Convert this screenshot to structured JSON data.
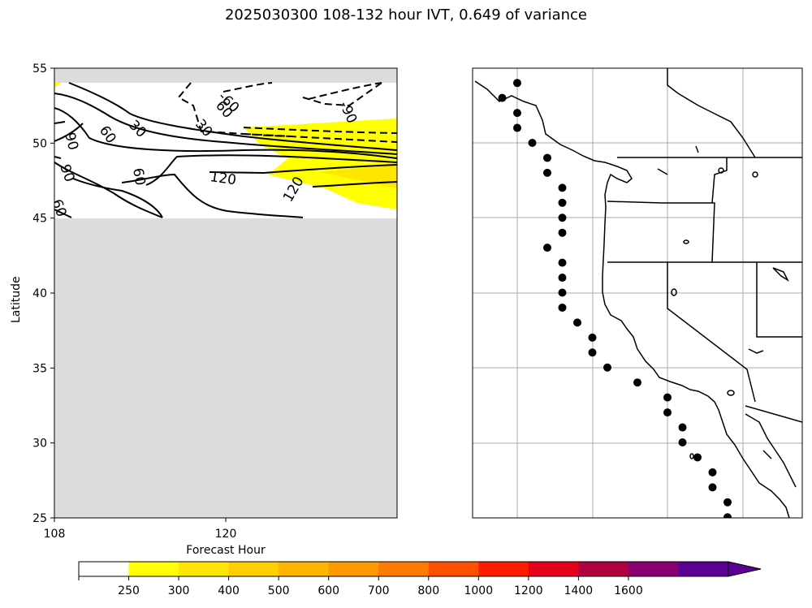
{
  "title": "2025030300 108-132 hour IVT, 0.649 of variance",
  "chart_data": [
    {
      "type": "contour",
      "xlabel": "Forecast Hour",
      "ylabel": "Latitude",
      "xlim": [
        108,
        132
      ],
      "ylim": [
        25,
        55
      ],
      "xticks": [
        "108",
        "120"
      ],
      "yticks": [
        "25",
        "30",
        "35",
        "40",
        "45",
        "50",
        "55"
      ],
      "data_band_lat": [
        45,
        54
      ],
      "contour_labels": [
        "90",
        "60",
        "30",
        "60",
        "30",
        "-60",
        "-90",
        "90",
        "60",
        "90",
        "120",
        "120",
        "60"
      ],
      "shaded_levels": [
        250,
        300
      ]
    },
    {
      "type": "map",
      "region": "US West Coast",
      "points_lonlat": [
        [
          -125,
          54
        ],
        [
          -126,
          53
        ],
        [
          -125,
          52
        ],
        [
          -125,
          51
        ],
        [
          -124,
          50
        ],
        [
          -123,
          49
        ],
        [
          -123,
          48
        ],
        [
          -122,
          47
        ],
        [
          -122,
          46
        ],
        [
          -122,
          45
        ],
        [
          -122,
          44
        ],
        [
          -123,
          43
        ],
        [
          -122,
          42
        ],
        [
          -122,
          41
        ],
        [
          -122,
          40
        ],
        [
          -122,
          39
        ],
        [
          -121,
          38
        ],
        [
          -120,
          37
        ],
        [
          -120,
          36
        ],
        [
          -119,
          35
        ],
        [
          -117,
          34
        ],
        [
          -115,
          33
        ],
        [
          -115,
          32
        ],
        [
          -114,
          31
        ],
        [
          -114,
          30
        ],
        [
          -113,
          29
        ],
        [
          -112,
          28
        ],
        [
          -112,
          27
        ],
        [
          -111,
          26
        ],
        [
          -111,
          25
        ]
      ]
    }
  ],
  "colorbar": {
    "levels": [
      "250",
      "300",
      "400",
      "500",
      "600",
      "700",
      "800",
      "1000",
      "1200",
      "1400",
      "1600"
    ],
    "colors": [
      "#ffffff",
      "#ffff00",
      "#ffe600",
      "#ffcf00",
      "#ffb400",
      "#ff9900",
      "#ff7a00",
      "#ff5000",
      "#ff1a00",
      "#e6001a",
      "#b00040",
      "#8a0070",
      "#5c0094"
    ]
  }
}
